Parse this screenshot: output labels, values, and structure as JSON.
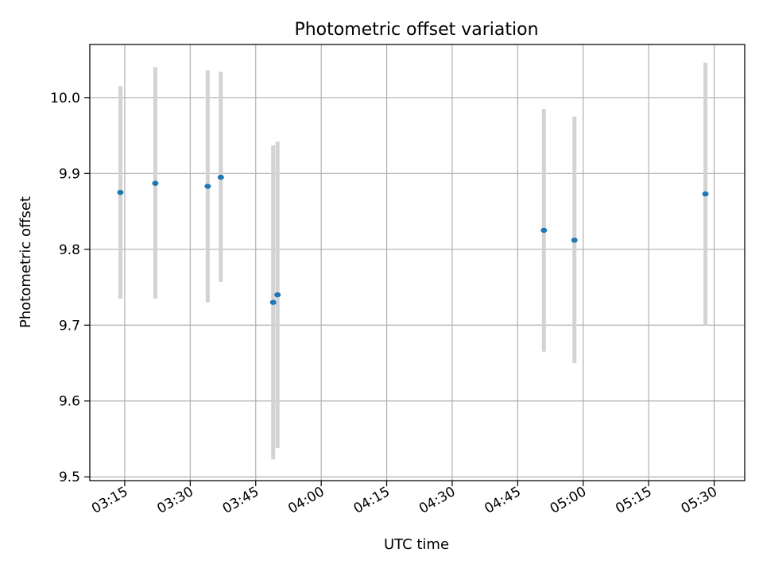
{
  "chart_data": {
    "type": "scatter",
    "title": "Photometric offset variation",
    "xlabel": "UTC time",
    "ylabel": "Photometric offset",
    "x_tick_labels": [
      "03:15",
      "03:30",
      "03:45",
      "04:00",
      "04:15",
      "04:30",
      "04:45",
      "05:00",
      "05:15",
      "05:30"
    ],
    "y_ticks": [
      9.5,
      9.6,
      9.7,
      9.8,
      9.9,
      10.0
    ],
    "y_tick_labels": [
      "9.5",
      "9.6",
      "9.7",
      "9.8",
      "9.9",
      "10.0"
    ],
    "xlim": [
      "03:07",
      "05:37"
    ],
    "ylim": [
      9.495,
      10.07
    ],
    "grid": true,
    "points": [
      {
        "x": "03:14",
        "y": 9.875,
        "err_low": 9.735,
        "err_high": 10.015
      },
      {
        "x": "03:22",
        "y": 9.887,
        "err_low": 9.735,
        "err_high": 10.04
      },
      {
        "x": "03:34",
        "y": 9.883,
        "err_low": 9.73,
        "err_high": 10.036
      },
      {
        "x": "03:37",
        "y": 9.895,
        "err_low": 9.757,
        "err_high": 10.034
      },
      {
        "x": "03:49",
        "y": 9.73,
        "err_low": 9.523,
        "err_high": 9.937
      },
      {
        "x": "03:50",
        "y": 9.74,
        "err_low": 9.538,
        "err_high": 9.942
      },
      {
        "x": "04:51",
        "y": 9.825,
        "err_low": 9.665,
        "err_high": 9.985
      },
      {
        "x": "04:58",
        "y": 9.812,
        "err_low": 9.65,
        "err_high": 9.975
      },
      {
        "x": "05:28",
        "y": 9.873,
        "err_low": 9.7,
        "err_high": 10.046
      }
    ],
    "colors": {
      "point": "#1f77b4",
      "errorbar": "#d3d3d3",
      "grid": "#b0b0b0",
      "axes": "#000000"
    }
  }
}
